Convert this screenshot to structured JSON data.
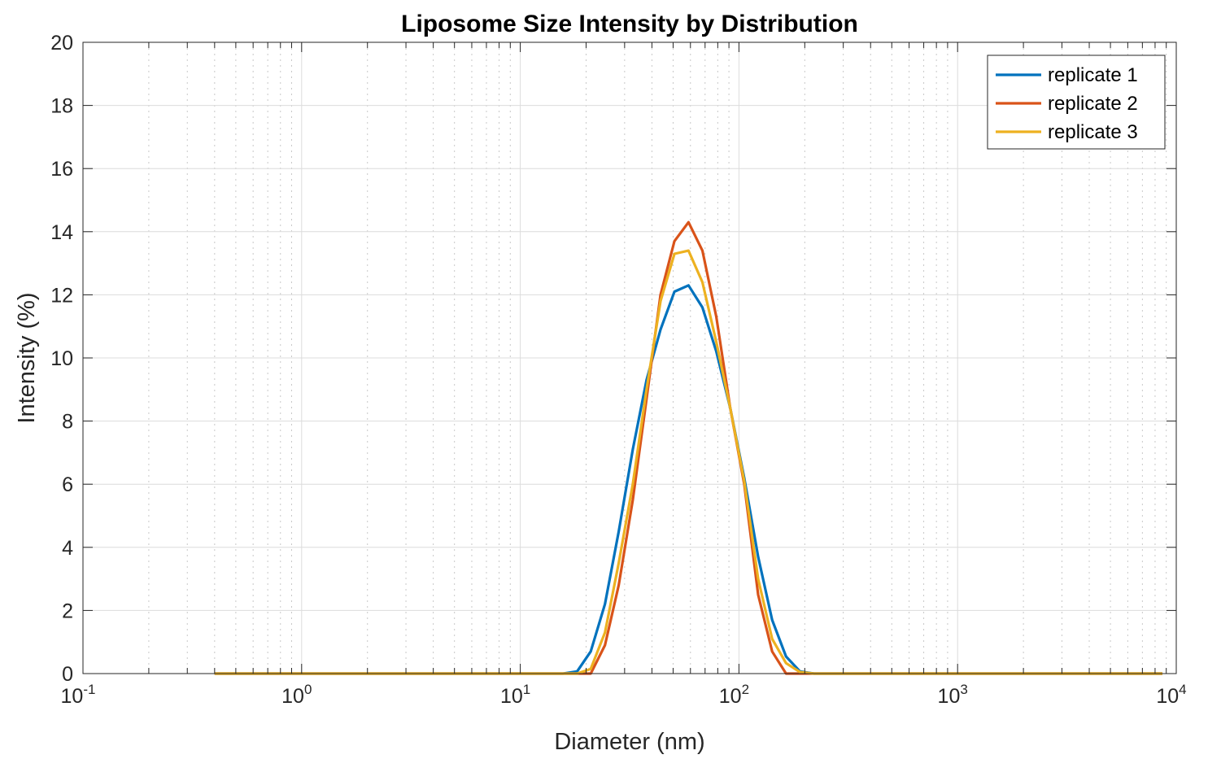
{
  "chart_data": {
    "type": "line",
    "title": "Liposome Size Intensity by Distribution",
    "xlabel": "Diameter (nm)",
    "ylabel": "Intensity (%)",
    "xscale": "log",
    "xlim": [
      0.1,
      10000
    ],
    "ylim": [
      0,
      20
    ],
    "grid": true,
    "legend_position": "top-right",
    "xticks": [
      {
        "base": "10",
        "exp": "-1"
      },
      {
        "base": "10",
        "exp": "0"
      },
      {
        "base": "10",
        "exp": "1"
      },
      {
        "base": "10",
        "exp": "2"
      },
      {
        "base": "10",
        "exp": "3"
      },
      {
        "base": "10",
        "exp": "4"
      }
    ],
    "yticks": [
      "0",
      "2",
      "4",
      "6",
      "8",
      "10",
      "12",
      "14",
      "16",
      "18",
      "20"
    ],
    "x": [
      0.4,
      0.463,
      0.537,
      0.621,
      0.72,
      0.834,
      0.966,
      1.117,
      1.295,
      1.499,
      1.737,
      2.01,
      2.33,
      2.7,
      3.12,
      3.61,
      4.19,
      4.85,
      5.61,
      6.5,
      7.53,
      8.72,
      10.1,
      11.7,
      13.5,
      15.7,
      18.2,
      21.0,
      24.4,
      28.2,
      32.7,
      37.8,
      43.8,
      50.7,
      58.8,
      68.1,
      78.8,
      91.3,
      105.7,
      122.4,
      141.8,
      164.2,
      190.1,
      220.2,
      255.0,
      295.3,
      342.0,
      396.1,
      458.7,
      531.2,
      615.1,
      712.4,
      825.0,
      955.4,
      1106,
      1281,
      1484,
      1718,
      1990,
      2305,
      2669,
      3091,
      3580,
      4145,
      4801,
      5560,
      6439,
      7456,
      8635
    ],
    "series": [
      {
        "name": "replicate 1",
        "color": "#0072BD",
        "values": [
          0,
          0,
          0,
          0,
          0,
          0,
          0,
          0,
          0,
          0,
          0,
          0,
          0,
          0,
          0,
          0,
          0,
          0,
          0,
          0,
          0,
          0,
          0,
          0,
          0,
          0,
          0.07,
          0.7,
          2.2,
          4.5,
          7.1,
          9.3,
          10.9,
          12.1,
          12.3,
          11.6,
          10.2,
          8.4,
          6.2,
          3.7,
          1.7,
          0.54,
          0.07,
          0,
          0,
          0,
          0,
          0,
          0,
          0,
          0,
          0,
          0,
          0,
          0,
          0,
          0,
          0,
          0,
          0,
          0,
          0,
          0,
          0,
          0,
          0,
          0,
          0,
          0
        ]
      },
      {
        "name": "replicate 2",
        "color": "#D95319",
        "values": [
          0,
          0,
          0,
          0,
          0,
          0,
          0,
          0,
          0,
          0,
          0,
          0,
          0,
          0,
          0,
          0,
          0,
          0,
          0,
          0,
          0,
          0,
          0,
          0,
          0,
          0,
          0,
          0,
          0.9,
          2.8,
          5.5,
          8.7,
          12.0,
          13.7,
          14.3,
          13.4,
          11.3,
          8.4,
          6.0,
          2.5,
          0.7,
          0,
          0,
          0,
          0,
          0,
          0,
          0,
          0,
          0,
          0,
          0,
          0,
          0,
          0,
          0,
          0,
          0,
          0,
          0,
          0,
          0,
          0,
          0,
          0,
          0,
          0,
          0,
          0
        ]
      },
      {
        "name": "replicate 3",
        "color": "#EDB120",
        "values": [
          0,
          0,
          0,
          0,
          0,
          0,
          0,
          0,
          0,
          0,
          0,
          0,
          0,
          0,
          0,
          0,
          0,
          0,
          0,
          0,
          0,
          0,
          0,
          0,
          0,
          0,
          0,
          0.15,
          1.3,
          3.5,
          6.0,
          9.0,
          11.8,
          13.3,
          13.4,
          12.4,
          10.5,
          8.4,
          6.1,
          3.0,
          1.1,
          0.33,
          0.05,
          0,
          0,
          0,
          0,
          0,
          0,
          0,
          0,
          0,
          0,
          0,
          0,
          0,
          0,
          0,
          0,
          0,
          0,
          0,
          0,
          0,
          0,
          0,
          0,
          0,
          0
        ]
      }
    ]
  }
}
